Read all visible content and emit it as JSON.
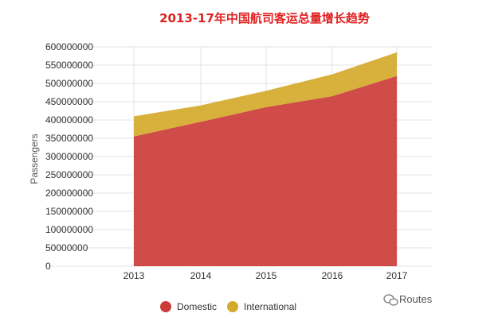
{
  "chart_data": {
    "type": "area",
    "title": "2013-17年中国航司客运总量增长趋势",
    "xlabel": "",
    "ylabel": "Passengers",
    "categories": [
      "2013",
      "2014",
      "2015",
      "2016",
      "2017"
    ],
    "series": [
      {
        "name": "Domestic",
        "values": [
          355000000,
          395000000,
          435000000,
          465000000,
          520000000
        ],
        "color": "#cc3d3a"
      },
      {
        "name": "International",
        "values": [
          55000000,
          45000000,
          45000000,
          60000000,
          65000000
        ],
        "color": "#d4aa2b"
      }
    ],
    "stacked": true,
    "ylim": [
      0,
      600000000
    ],
    "yticks": [
      "0",
      "50000000",
      "100000000",
      "150000000",
      "200000000",
      "250000000",
      "300000000",
      "350000000",
      "400000000",
      "450000000",
      "500000000",
      "550000000",
      "600000000"
    ],
    "grid": true,
    "legend_position": "bottom",
    "title_color": "#e02020"
  },
  "watermark": {
    "icon": "wechat-icon",
    "text": "Routes"
  }
}
